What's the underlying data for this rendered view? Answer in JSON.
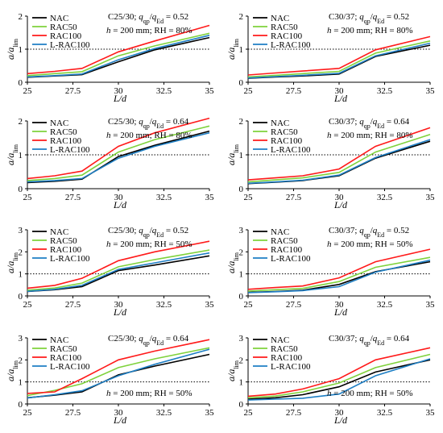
{
  "chart_data": [
    {
      "type": "line",
      "x": [
        25,
        26.5,
        28,
        30,
        32,
        35
      ],
      "series": [
        {
          "name": "NAC",
          "values": [
            0.15,
            0.19,
            0.23,
            0.62,
            0.98,
            1.35
          ]
        },
        {
          "name": "RAC50",
          "values": [
            0.2,
            0.26,
            0.32,
            0.8,
            1.1,
            1.48
          ]
        },
        {
          "name": "RAC100",
          "values": [
            0.26,
            0.33,
            0.42,
            0.92,
            1.25,
            1.72
          ]
        },
        {
          "name": "L-RAC100",
          "values": [
            0.16,
            0.2,
            0.25,
            0.68,
            1.02,
            1.42
          ]
        }
      ],
      "annotations": [
        "C25/30; q_qp/q_Ed = 0.52",
        "h = 200 mm; RH = 80%"
      ],
      "xlabel": "L/d",
      "ylabel": "a/a_lim",
      "xlim": [
        25,
        35
      ],
      "ylim": [
        0,
        2
      ],
      "xticks": [
        "25",
        "27.5",
        "30",
        "32.5",
        "35"
      ],
      "yticks": [
        "0",
        "1",
        "2"
      ],
      "reference_line": 1
    },
    {
      "type": "line",
      "x": [
        25,
        26.5,
        28,
        30,
        32,
        35
      ],
      "series": [
        {
          "name": "NAC",
          "values": [
            0.12,
            0.16,
            0.19,
            0.25,
            0.78,
            1.12
          ]
        },
        {
          "name": "RAC50",
          "values": [
            0.16,
            0.21,
            0.26,
            0.33,
            0.88,
            1.25
          ]
        },
        {
          "name": "RAC100",
          "values": [
            0.22,
            0.28,
            0.34,
            0.42,
            0.98,
            1.38
          ]
        },
        {
          "name": "L-RAC100",
          "values": [
            0.13,
            0.17,
            0.21,
            0.27,
            0.8,
            1.18
          ]
        }
      ],
      "annotations": [
        "C30/37; q_qp/q_Ed = 0.52",
        "h = 200 mm; RH = 80%"
      ],
      "xlabel": "L/d",
      "ylabel": "a/a_lim",
      "xlim": [
        25,
        35
      ],
      "ylim": [
        0,
        2
      ],
      "xticks": [
        "25",
        "27.5",
        "30",
        "32.5",
        "35"
      ],
      "yticks": [
        "0",
        "1",
        "2"
      ],
      "reference_line": 1
    },
    {
      "type": "line",
      "x": [
        25,
        26.5,
        28,
        30,
        32,
        35
      ],
      "series": [
        {
          "name": "NAC",
          "values": [
            0.18,
            0.22,
            0.28,
            0.95,
            1.28,
            1.7
          ]
        },
        {
          "name": "RAC50",
          "values": [
            0.24,
            0.3,
            0.4,
            1.08,
            1.45,
            1.85
          ]
        },
        {
          "name": "RAC100",
          "values": [
            0.3,
            0.38,
            0.52,
            1.25,
            1.65,
            2.08
          ]
        },
        {
          "name": "L-RAC100",
          "values": [
            0.2,
            0.24,
            0.3,
            0.9,
            1.25,
            1.65
          ]
        }
      ],
      "annotations": [
        "C25/30; q_qp/q_Ed = 0.64",
        "h = 200 mm; RH = 80%"
      ],
      "xlabel": "L/d",
      "ylabel": "a/a_lim",
      "xlim": [
        25,
        35
      ],
      "ylim": [
        0,
        2
      ],
      "xticks": [
        "25",
        "27.5",
        "30",
        "32.5",
        "35"
      ],
      "yticks": [
        "0",
        "1",
        "2"
      ],
      "reference_line": 1
    },
    {
      "type": "line",
      "x": [
        25,
        26.5,
        28,
        30,
        32,
        35
      ],
      "series": [
        {
          "name": "NAC",
          "values": [
            0.15,
            0.19,
            0.24,
            0.38,
            0.9,
            1.4
          ]
        },
        {
          "name": "RAC50",
          "values": [
            0.2,
            0.26,
            0.32,
            0.48,
            1.08,
            1.6
          ]
        },
        {
          "name": "RAC100",
          "values": [
            0.26,
            0.32,
            0.38,
            0.58,
            1.25,
            1.8
          ]
        },
        {
          "name": "L-RAC100",
          "values": [
            0.16,
            0.2,
            0.25,
            0.4,
            0.92,
            1.45
          ]
        }
      ],
      "annotations": [
        "C30/37; q_qp/q_Ed = 0.64",
        "h = 200 mm; RH = 80%"
      ],
      "xlabel": "L/d",
      "ylabel": "a/a_lim",
      "xlim": [
        25,
        35
      ],
      "ylim": [
        0,
        2
      ],
      "xticks": [
        "25",
        "27.5",
        "30",
        "32.5",
        "35"
      ],
      "yticks": [
        "0",
        "1",
        "2"
      ],
      "reference_line": 1
    },
    {
      "type": "line",
      "x": [
        25,
        26.5,
        28,
        30,
        32,
        35
      ],
      "series": [
        {
          "name": "NAC",
          "values": [
            0.2,
            0.28,
            0.42,
            1.15,
            1.4,
            1.82
          ]
        },
        {
          "name": "RAC50",
          "values": [
            0.26,
            0.36,
            0.58,
            1.32,
            1.65,
            2.08
          ]
        },
        {
          "name": "RAC100",
          "values": [
            0.35,
            0.48,
            0.8,
            1.6,
            2.0,
            2.48
          ]
        },
        {
          "name": "L-RAC100",
          "values": [
            0.21,
            0.3,
            0.48,
            1.2,
            1.5,
            1.95
          ]
        }
      ],
      "annotations": [
        "C25/30; q_qp/q_Ed = 0.52",
        "h = 200 mm; RH = 50%"
      ],
      "xlabel": "L/d",
      "ylabel": "a/a_lim",
      "xlim": [
        25,
        35
      ],
      "ylim": [
        0,
        3
      ],
      "xticks": [
        "25",
        "27.5",
        "30",
        "32.5",
        "35"
      ],
      "yticks": [
        "0",
        "1",
        "2",
        "3"
      ],
      "reference_line": 1
    },
    {
      "type": "line",
      "x": [
        25,
        26.5,
        28,
        30,
        32,
        35
      ],
      "series": [
        {
          "name": "NAC",
          "values": [
            0.16,
            0.2,
            0.26,
            0.52,
            1.1,
            1.55
          ]
        },
        {
          "name": "RAC50",
          "values": [
            0.22,
            0.28,
            0.34,
            0.65,
            1.3,
            1.75
          ]
        },
        {
          "name": "RAC100",
          "values": [
            0.3,
            0.38,
            0.45,
            0.82,
            1.55,
            2.12
          ]
        },
        {
          "name": "L-RAC100",
          "values": [
            0.15,
            0.19,
            0.24,
            0.42,
            1.08,
            1.62
          ]
        }
      ],
      "annotations": [
        "C30/37; q_qp/q_Ed = 0.52",
        "h = 200 mm; RH = 50%"
      ],
      "xlabel": "L/d",
      "ylabel": "a/a_lim",
      "xlim": [
        25,
        35
      ],
      "ylim": [
        0,
        3
      ],
      "xticks": [
        "25",
        "27.5",
        "30",
        "32.5",
        "35"
      ],
      "yticks": [
        "0",
        "1",
        "2",
        "3"
      ],
      "reference_line": 1
    },
    {
      "type": "line",
      "x": [
        25,
        26.5,
        28,
        30,
        32,
        35
      ],
      "series": [
        {
          "name": "NAC",
          "values": [
            0.28,
            0.4,
            0.55,
            1.32,
            1.72,
            2.25
          ]
        },
        {
          "name": "RAC50",
          "values": [
            0.38,
            0.62,
            0.92,
            1.65,
            2.05,
            2.55
          ]
        },
        {
          "name": "RAC100",
          "values": [
            0.48,
            0.55,
            1.15,
            2.0,
            2.4,
            2.92
          ]
        },
        {
          "name": "L-RAC100",
          "values": [
            0.27,
            0.42,
            0.6,
            1.28,
            1.8,
            2.48
          ]
        }
      ],
      "annotations": [
        "C25/30; q_qp/q_Ed = 0.64",
        "h = 200 mm; RH = 50%"
      ],
      "xlabel": "L/d",
      "ylabel": "a/a_lim",
      "xlim": [
        25,
        35
      ],
      "ylim": [
        0,
        3
      ],
      "xticks": [
        "25",
        "27.5",
        "30",
        "32.5",
        "35"
      ],
      "yticks": [
        "0",
        "1",
        "2",
        "3"
      ],
      "reference_line": 1
    },
    {
      "type": "line",
      "x": [
        25,
        26.5,
        28,
        30,
        32,
        35
      ],
      "series": [
        {
          "name": "NAC",
          "values": [
            0.22,
            0.28,
            0.42,
            0.78,
            1.45,
            2.0
          ]
        },
        {
          "name": "RAC50",
          "values": [
            0.28,
            0.36,
            0.55,
            0.95,
            1.65,
            2.25
          ]
        },
        {
          "name": "RAC100",
          "values": [
            0.35,
            0.45,
            0.68,
            1.15,
            2.0,
            2.55
          ]
        },
        {
          "name": "L-RAC100",
          "values": [
            0.18,
            0.22,
            0.26,
            0.45,
            1.28,
            2.05
          ]
        }
      ],
      "annotations": [
        "C30/37; q_qp/q_Ed = 0.64",
        "h = 200 mm; RH = 50%"
      ],
      "xlabel": "L/d",
      "ylabel": "a/a_lim",
      "xlim": [
        25,
        35
      ],
      "ylim": [
        0,
        3
      ],
      "xticks": [
        "25",
        "27.5",
        "30",
        "32.5",
        "35"
      ],
      "yticks": [
        "0",
        "1",
        "2",
        "3"
      ],
      "reference_line": 1
    }
  ],
  "series_colors": {
    "NAC": "#000000",
    "RAC50": "#7fd23c",
    "RAC100": "#ff1a1a",
    "L-RAC100": "#1f7fc4"
  }
}
